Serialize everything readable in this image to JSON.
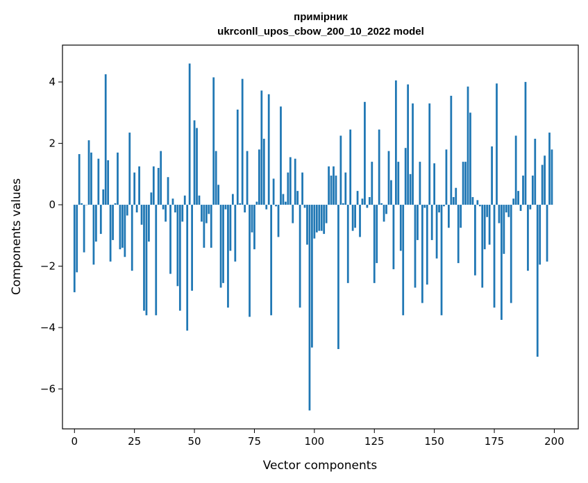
{
  "chart_data": {
    "type": "bar",
    "title_line1": "примірник",
    "title_line2": "ukrconll_upos_cbow_200_10_2022 model",
    "xlabel": "Vector components",
    "ylabel": "Components values",
    "xlim": [
      -5,
      210
    ],
    "ylim": [
      -7.3,
      5.2
    ],
    "xticks": [
      0,
      25,
      50,
      75,
      100,
      125,
      150,
      175,
      200
    ],
    "yticks": [
      -6,
      -4,
      -2,
      0,
      2,
      4
    ],
    "ytick_labels": [
      "−6",
      "−4",
      "−2",
      "0",
      "2",
      "4"
    ],
    "bar_color": "#1f77b4",
    "grid": false,
    "values": [
      -2.85,
      -2.2,
      1.65,
      0.05,
      -1.55,
      0.0,
      2.1,
      1.7,
      -1.95,
      -1.2,
      1.5,
      -0.95,
      0.5,
      4.25,
      1.45,
      -1.85,
      -1.15,
      0.05,
      1.7,
      -1.45,
      -1.4,
      -1.7,
      -0.35,
      2.35,
      -2.15,
      1.05,
      -0.25,
      1.25,
      -0.65,
      -3.45,
      -3.6,
      -1.2,
      0.4,
      1.25,
      -3.6,
      1.2,
      1.75,
      -0.15,
      -0.55,
      0.9,
      -2.25,
      0.2,
      -0.25,
      -2.65,
      -3.45,
      -0.55,
      0.3,
      -4.1,
      4.6,
      -2.8,
      2.75,
      2.5,
      0.3,
      -0.55,
      -1.4,
      -0.6,
      -0.3,
      -1.4,
      4.15,
      1.75,
      0.65,
      -2.7,
      -2.55,
      -0.15,
      -3.35,
      -1.5,
      0.35,
      -1.85,
      3.1,
      0.05,
      4.1,
      -0.25,
      1.75,
      -3.65,
      -0.9,
      -1.45,
      0.1,
      1.8,
      3.72,
      2.15,
      -0.15,
      3.6,
      -3.6,
      0.85,
      -0.05,
      -1.05,
      3.2,
      0.35,
      0.1,
      1.05,
      1.55,
      -0.6,
      1.5,
      0.45,
      -3.35,
      1.05,
      -0.1,
      -1.3,
      -6.7,
      -4.65,
      -1.1,
      -0.9,
      -0.85,
      -0.85,
      -0.95,
      -0.6,
      1.25,
      0.95,
      1.25,
      0.95,
      -4.7,
      2.25,
      0.05,
      1.05,
      -2.55,
      2.45,
      -0.85,
      -0.75,
      0.45,
      -1.05,
      0.2,
      3.35,
      -0.1,
      0.25,
      1.4,
      -2.55,
      -1.9,
      2.45,
      0.05,
      -0.55,
      -0.3,
      1.75,
      0.8,
      -2.1,
      4.05,
      1.4,
      -1.5,
      -3.6,
      1.85,
      3.92,
      1.0,
      3.3,
      -2.7,
      -1.15,
      1.4,
      -3.2,
      -0.1,
      -2.6,
      3.3,
      -1.15,
      1.35,
      -1.75,
      -0.25,
      -3.6,
      -0.05,
      1.8,
      -0.75,
      3.55,
      0.25,
      0.55,
      -1.9,
      -0.75,
      1.4,
      1.4,
      3.85,
      3.0,
      0.25,
      -2.3,
      0.15,
      -0.05,
      -2.7,
      -1.45,
      -0.4,
      -1.3,
      1.9,
      -3.35,
      3.95,
      -0.6,
      -3.75,
      -1.6,
      -0.25,
      -0.4,
      -3.2,
      0.2,
      2.25,
      0.45,
      -0.2,
      0.95,
      4.0,
      -2.15,
      -0.15,
      0.95,
      2.15,
      -4.95,
      -1.95,
      1.3,
      1.6,
      -1.85,
      2.35,
      1.8
    ]
  }
}
